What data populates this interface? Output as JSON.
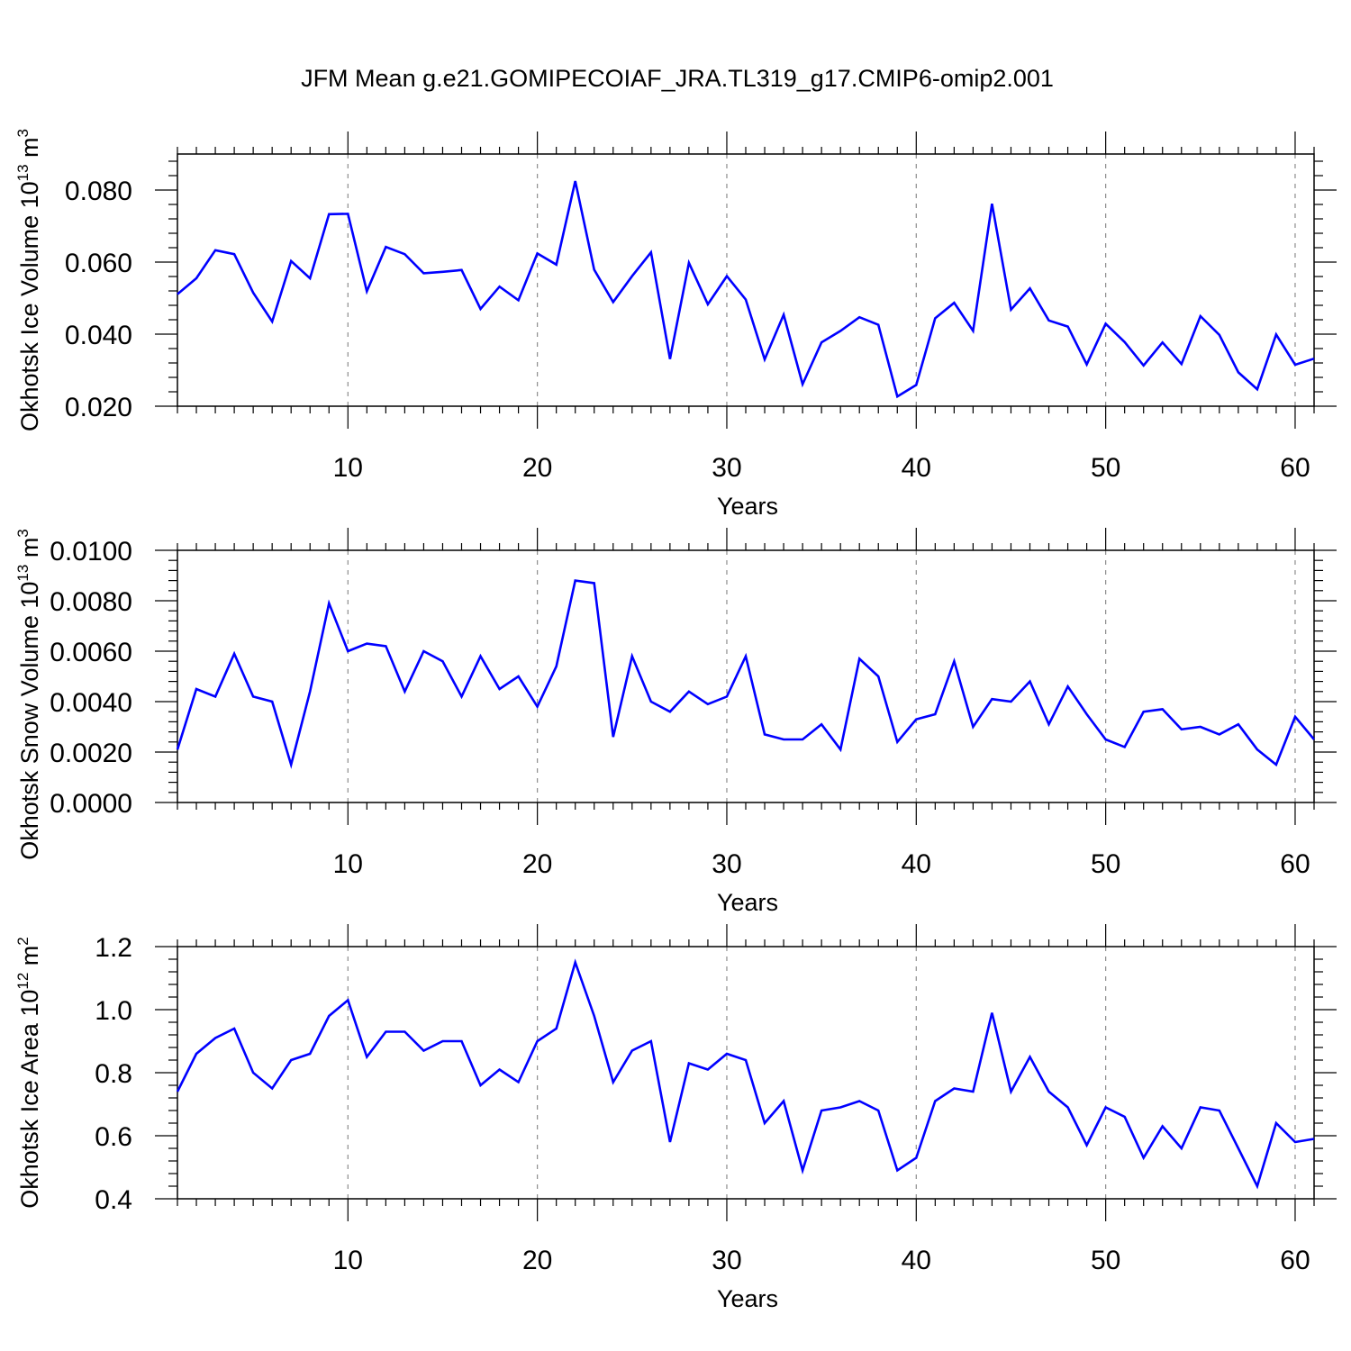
{
  "title": "JFM Mean g.e21.GOMIPECOIAF_JRA.TL319_g17.CMIP6-omip2.001",
  "colors": {
    "line": "#0000ff",
    "axis": "#000000",
    "grid": "#8c8c8c"
  },
  "chart_data": [
    {
      "type": "line",
      "ylabel": {
        "base": "Okhotsk Ice Volume 10",
        "exp": "13",
        "unit": " m",
        "unit_exp": "3"
      },
      "xlabel": "Years",
      "xlim": [
        1,
        61
      ],
      "ylim": [
        0.02,
        0.09
      ],
      "yticks": [
        0.02,
        0.04,
        0.06,
        0.08
      ],
      "ytick_labels": [
        "0.020",
        "0.040",
        "0.060",
        "0.080"
      ],
      "xticks": [
        10,
        20,
        30,
        40,
        50,
        60
      ],
      "xtick_labels": [
        "10",
        "20",
        "30",
        "40",
        "50",
        "60"
      ],
      "grid": "vertical-dashed",
      "series": [
        {
          "x": [
            1,
            2,
            3,
            4,
            5,
            6,
            7,
            8,
            9,
            10,
            11,
            12,
            13,
            14,
            15,
            16,
            17,
            18,
            19,
            20,
            21,
            22,
            23,
            24,
            25,
            26,
            27,
            28,
            29,
            30,
            31,
            32,
            33,
            34,
            35,
            36,
            37,
            38,
            39,
            40,
            41,
            42,
            43,
            44,
            45,
            46,
            47,
            48,
            49,
            50,
            51,
            52,
            53,
            54,
            55,
            56,
            57,
            58,
            59,
            60,
            61
          ],
          "y": [
            0.0511,
            0.0555,
            0.0633,
            0.0622,
            0.0515,
            0.0435,
            0.0603,
            0.0555,
            0.0733,
            0.0734,
            0.0519,
            0.0642,
            0.0622,
            0.0569,
            0.0573,
            0.0578,
            0.047,
            0.0532,
            0.0494,
            0.0624,
            0.0593,
            0.0825,
            0.0579,
            0.0489,
            0.0561,
            0.0627,
            0.0331,
            0.0598,
            0.0483,
            0.0561,
            0.0496,
            0.033,
            0.0454,
            0.0261,
            0.0377,
            0.0409,
            0.0447,
            0.0426,
            0.0227,
            0.0259,
            0.0444,
            0.0487,
            0.0409,
            0.0762,
            0.0468,
            0.0527,
            0.0438,
            0.0421,
            0.0316,
            0.0429,
            0.0378,
            0.0313,
            0.0377,
            0.0317,
            0.045,
            0.0398,
            0.0294,
            0.0247,
            0.0399,
            0.0315,
            0.0332
          ]
        }
      ]
    },
    {
      "type": "line",
      "ylabel": {
        "base": "Okhotsk Snow Volume 10",
        "exp": "13",
        "unit": " m",
        "unit_exp": "3"
      },
      "xlabel": "Years",
      "xlim": [
        1,
        61
      ],
      "ylim": [
        0.0,
        0.01
      ],
      "yticks": [
        0.0,
        0.002,
        0.004,
        0.006,
        0.008,
        0.01
      ],
      "ytick_labels": [
        "0.0000",
        "0.0020",
        "0.0040",
        "0.0060",
        "0.0080",
        "0.0100"
      ],
      "xticks": [
        10,
        20,
        30,
        40,
        50,
        60
      ],
      "xtick_labels": [
        "10",
        "20",
        "30",
        "40",
        "50",
        "60"
      ],
      "grid": "vertical-dashed",
      "series": [
        {
          "x": [
            1,
            2,
            3,
            4,
            5,
            6,
            7,
            8,
            9,
            10,
            11,
            12,
            13,
            14,
            15,
            16,
            17,
            18,
            19,
            20,
            21,
            22,
            23,
            24,
            25,
            26,
            27,
            28,
            29,
            30,
            31,
            32,
            33,
            34,
            35,
            36,
            37,
            38,
            39,
            40,
            41,
            42,
            43,
            44,
            45,
            46,
            47,
            48,
            49,
            50,
            51,
            52,
            53,
            54,
            55,
            56,
            57,
            58,
            59,
            60,
            61
          ],
          "y": [
            0.0021,
            0.0045,
            0.0042,
            0.0059,
            0.0042,
            0.004,
            0.0015,
            0.0044,
            0.0079,
            0.006,
            0.0063,
            0.0062,
            0.0044,
            0.006,
            0.0056,
            0.0042,
            0.0058,
            0.0045,
            0.005,
            0.0038,
            0.0054,
            0.0088,
            0.0087,
            0.0026,
            0.0058,
            0.004,
            0.0036,
            0.0044,
            0.0039,
            0.0042,
            0.0058,
            0.0027,
            0.0025,
            0.0025,
            0.0031,
            0.0021,
            0.0057,
            0.005,
            0.0024,
            0.0033,
            0.0035,
            0.0056,
            0.003,
            0.0041,
            0.004,
            0.0048,
            0.0031,
            0.0046,
            0.0035,
            0.0025,
            0.0022,
            0.0036,
            0.0037,
            0.0029,
            0.003,
            0.0027,
            0.0031,
            0.0021,
            0.0015,
            0.0034,
            0.0025
          ]
        }
      ]
    },
    {
      "type": "line",
      "ylabel": {
        "base": "Okhotsk Ice Area 10",
        "exp": "12",
        "unit": " m",
        "unit_exp": "2"
      },
      "xlabel": "Years",
      "xlim": [
        1,
        61
      ],
      "ylim": [
        0.4,
        1.2
      ],
      "yticks": [
        0.4,
        0.6,
        0.8,
        1.0,
        1.2
      ],
      "ytick_labels": [
        "0.4",
        "0.6",
        "0.8",
        "1.0",
        "1.2"
      ],
      "xticks": [
        10,
        20,
        30,
        40,
        50,
        60
      ],
      "xtick_labels": [
        "10",
        "20",
        "30",
        "40",
        "50",
        "60"
      ],
      "grid": "vertical-dashed",
      "series": [
        {
          "x": [
            1,
            2,
            3,
            4,
            5,
            6,
            7,
            8,
            9,
            10,
            11,
            12,
            13,
            14,
            15,
            16,
            17,
            18,
            19,
            20,
            21,
            22,
            23,
            24,
            25,
            26,
            27,
            28,
            29,
            30,
            31,
            32,
            33,
            34,
            35,
            36,
            37,
            38,
            39,
            40,
            41,
            42,
            43,
            44,
            45,
            46,
            47,
            48,
            49,
            50,
            51,
            52,
            53,
            54,
            55,
            56,
            57,
            58,
            59,
            60,
            61
          ],
          "y": [
            0.74,
            0.86,
            0.91,
            0.94,
            0.8,
            0.75,
            0.84,
            0.86,
            0.98,
            1.03,
            0.85,
            0.93,
            0.93,
            0.87,
            0.9,
            0.9,
            0.76,
            0.81,
            0.77,
            0.9,
            0.94,
            1.15,
            0.98,
            0.77,
            0.87,
            0.9,
            0.58,
            0.83,
            0.81,
            0.86,
            0.84,
            0.64,
            0.71,
            0.49,
            0.68,
            0.69,
            0.71,
            0.68,
            0.49,
            0.53,
            0.71,
            0.75,
            0.74,
            0.99,
            0.74,
            0.85,
            0.74,
            0.69,
            0.57,
            0.69,
            0.66,
            0.53,
            0.63,
            0.56,
            0.69,
            0.68,
            0.56,
            0.44,
            0.64,
            0.58,
            0.59
          ]
        }
      ]
    }
  ]
}
